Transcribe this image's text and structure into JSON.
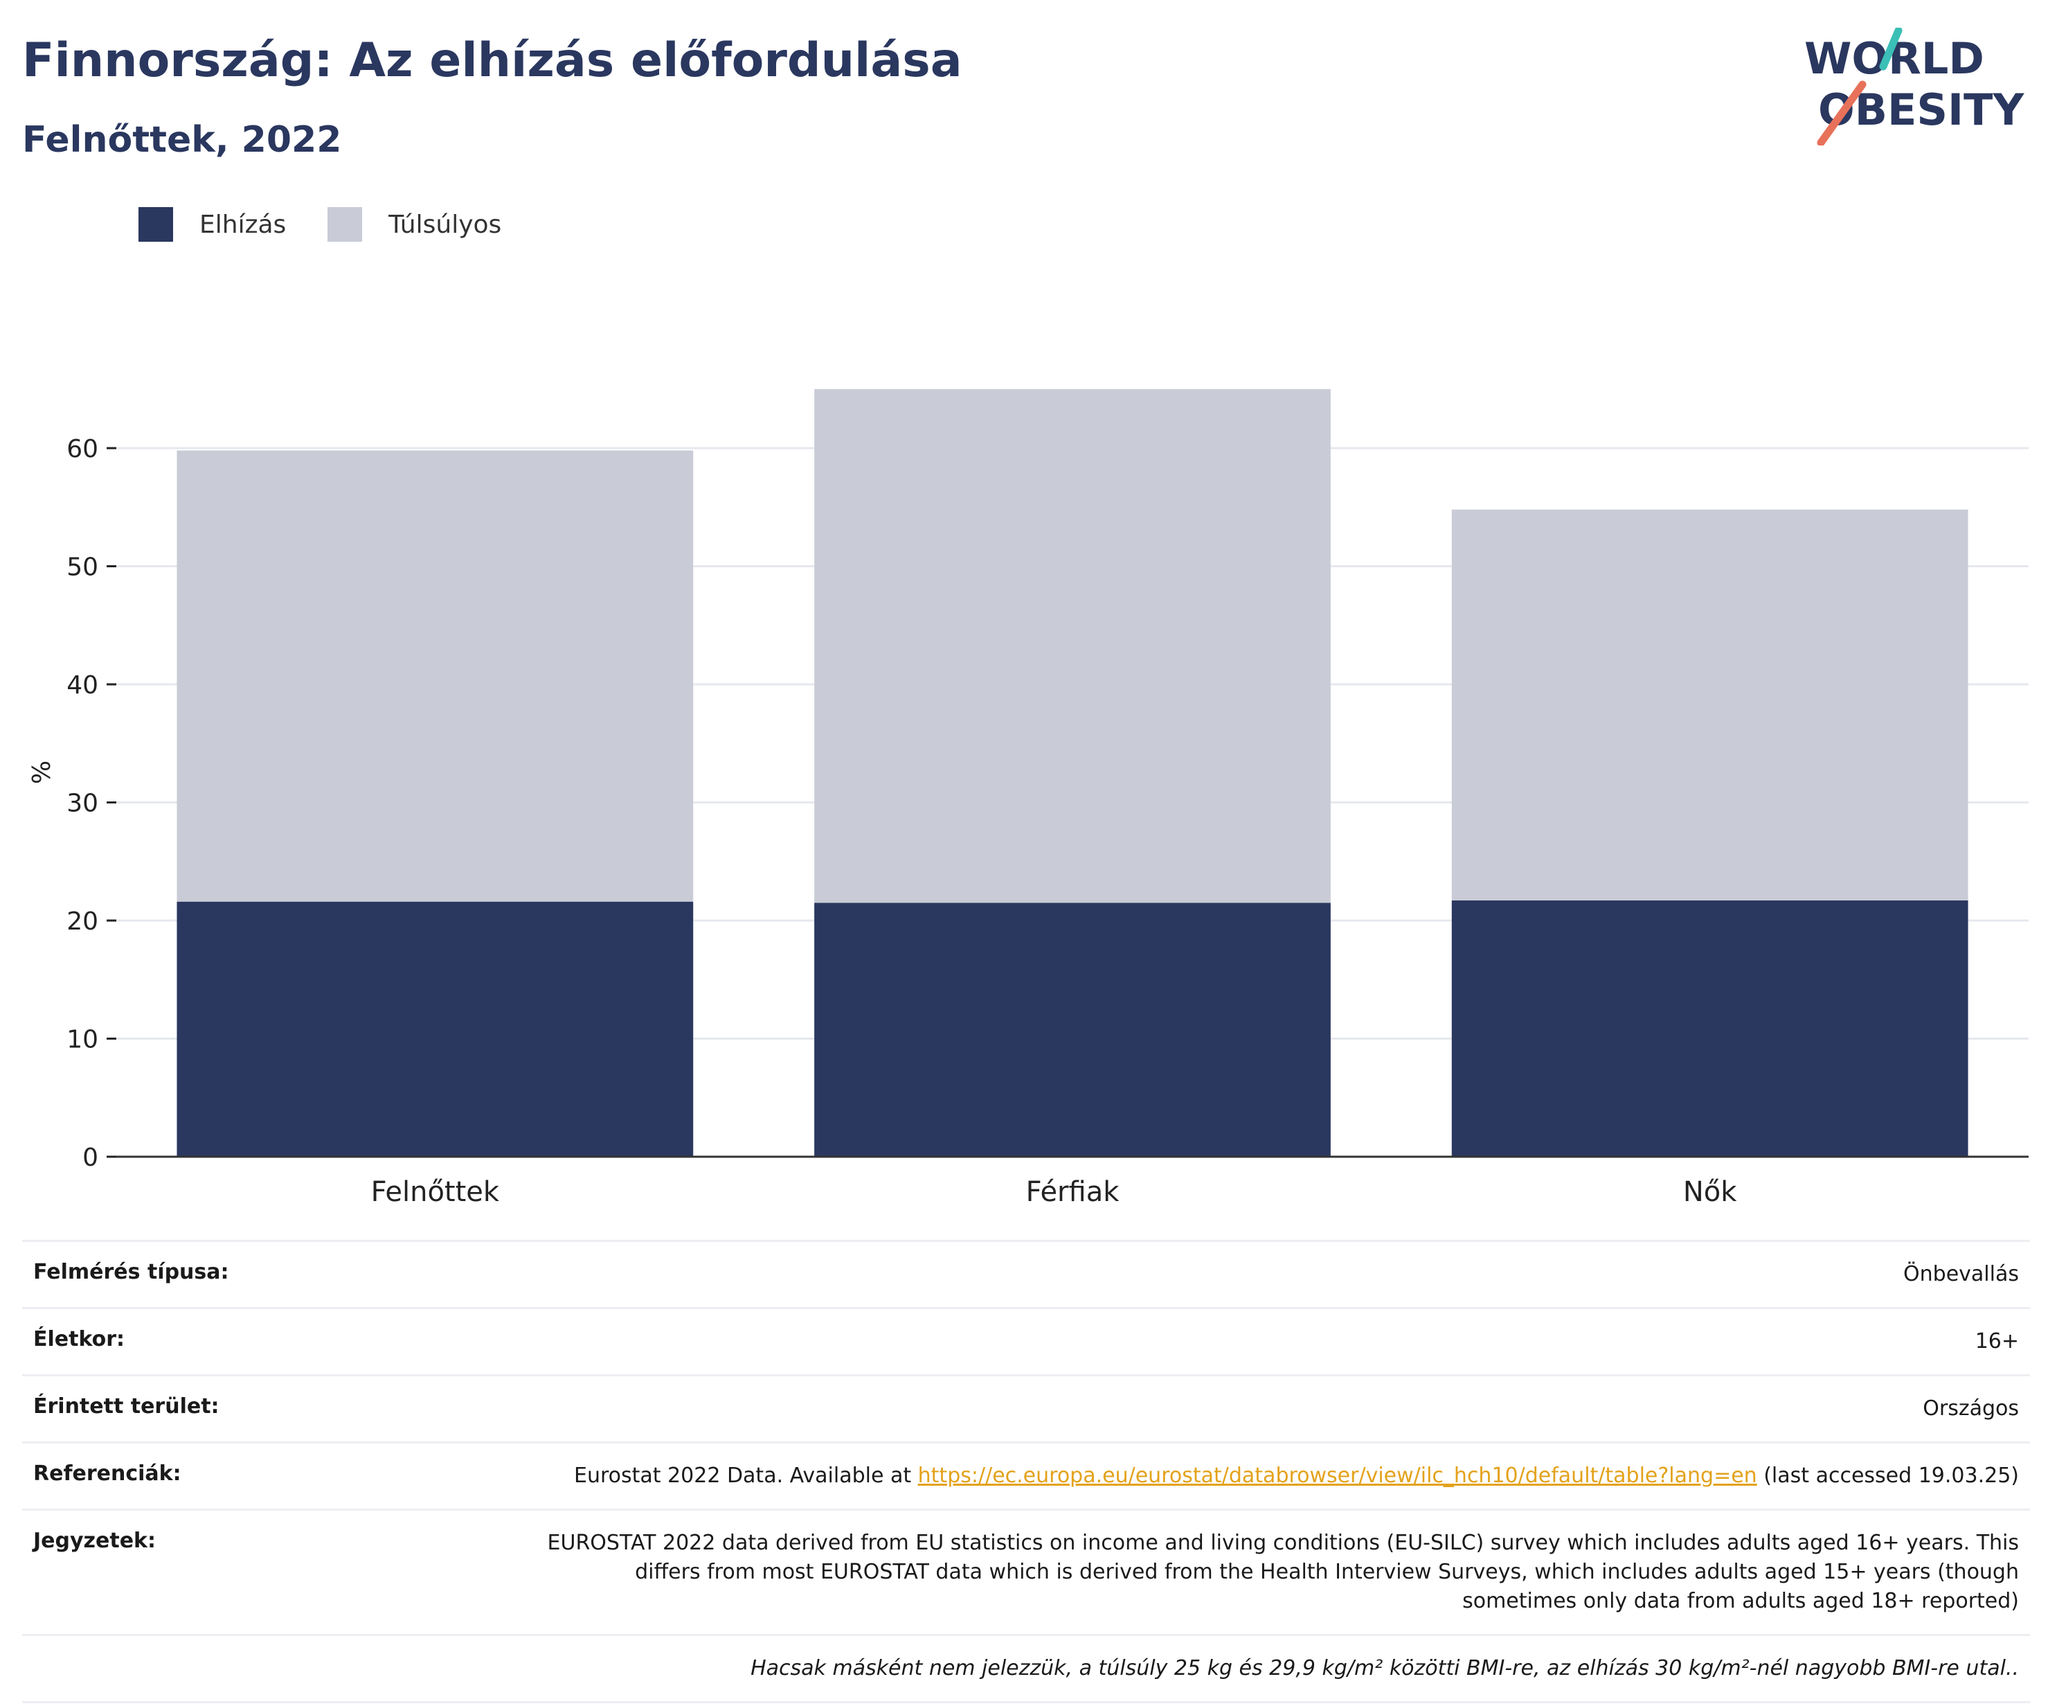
{
  "header": {
    "title": "Finnország: Az elhízás előfordulása",
    "subtitle": "Felnőttek, 2022"
  },
  "logo": {
    "line1": "WORLD",
    "line2": "OBESITY",
    "slash_colors": [
      "#3bbfb6",
      "#e8715a"
    ]
  },
  "legend": [
    {
      "label": "Elhízás",
      "color": "#2a375f"
    },
    {
      "label": "Túlsúlyos",
      "color": "#c9ccd7"
    }
  ],
  "chart_data": {
    "type": "bar",
    "stacked": true,
    "categories": [
      "Felnőttek",
      "Férfiak",
      "Nők"
    ],
    "series": [
      {
        "name": "Elhízás",
        "color": "#2a375f",
        "values": [
          21.6,
          21.5,
          21.7
        ]
      },
      {
        "name": "Túlsúlyos",
        "color": "#c9ccd7",
        "values": [
          38.2,
          43.5,
          33.1
        ]
      }
    ],
    "ylabel": "%",
    "ylim": [
      0,
      65
    ],
    "yticks": [
      0,
      10,
      20,
      30,
      40,
      50,
      60
    ],
    "grid": true
  },
  "meta": {
    "survey_label": "Felmérés típusa:",
    "survey_value": "Önbevallás",
    "age_label": "Életkor:",
    "age_value": "16+",
    "area_label": "Érintett terület:",
    "area_value": "Országos",
    "ref_label": "Referenciák:",
    "ref_prefix": "Eurostat 2022 Data. Available at ",
    "ref_link": "https://ec.europa.eu/eurostat/databrowser/view/ilc_hch10/default/table?lang=en",
    "ref_suffix": " (last accessed 19.03.25)",
    "notes_label": "Jegyzetek:",
    "notes_value": "EUROSTAT 2022 data derived from EU statistics on income and living conditions (EU-SILC) survey which includes adults aged 16+ years. This differs from most EUROSTAT data which is derived from the Health Interview Surveys, which includes adults aged 15+ years (though sometimes only data from adults aged 18+ reported)",
    "footnote": "Hacsak másként nem jelezzük, a túlsúly 25 kg és 29,9 kg/m² közötti BMI-re, az elhízás 30 kg/m²-nél nagyobb BMI-re utal.."
  }
}
